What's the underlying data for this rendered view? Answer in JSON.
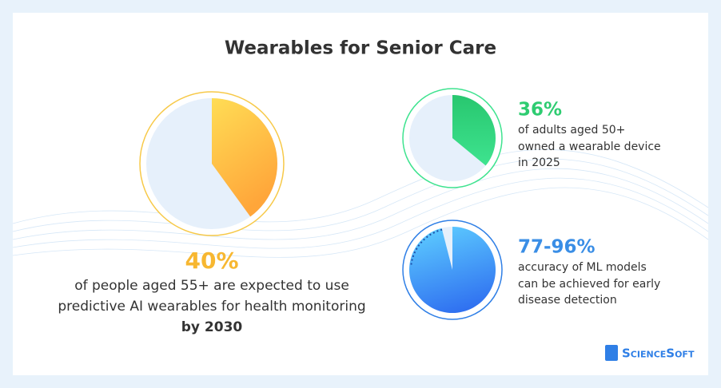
{
  "title": "Wearables for Senior Care",
  "stats": [
    {
      "value": 40,
      "label": "40%",
      "text": [
        "of people aged 55+ are expected to use",
        "predictive AI wearables for health monitoring"
      ],
      "emphasis": "by 2030"
    },
    {
      "value": 36,
      "label": "36%",
      "text": [
        "of adults aged 50+",
        "owned a wearable device",
        "in 2025"
      ]
    },
    {
      "low": 77,
      "high": 96,
      "label": "77-96%",
      "text": [
        "accuracy of ML models",
        "can be achieved for early",
        "disease detection"
      ]
    }
  ],
  "logo": "ScienceSoft"
}
